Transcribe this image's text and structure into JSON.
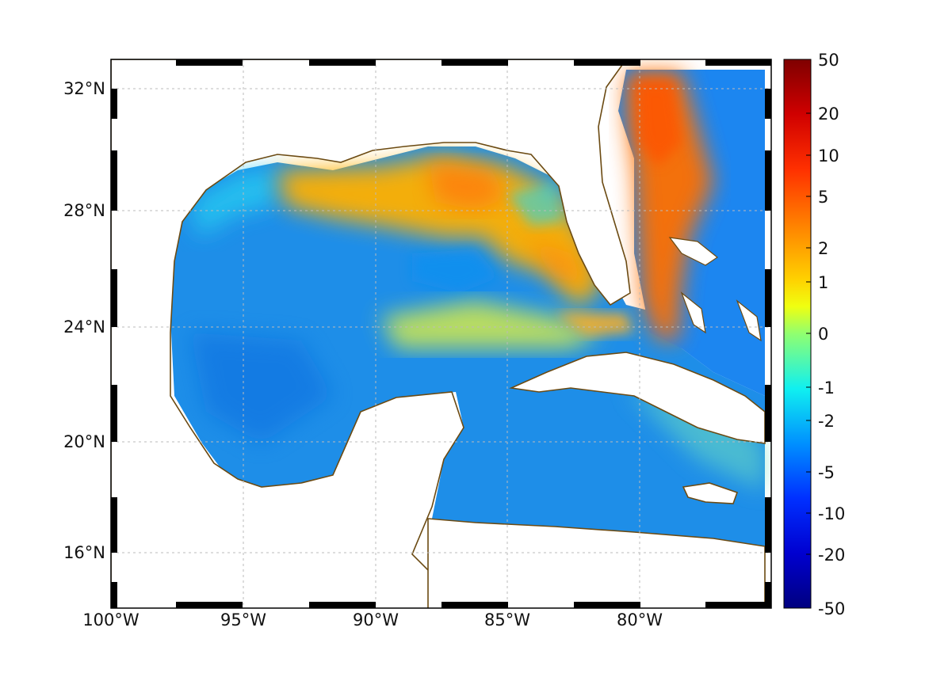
{
  "map": {
    "lat_labels": [
      "32°N",
      "28°N",
      "24°N",
      "20°N",
      "16°N"
    ],
    "lon_labels": [
      "100°W",
      "95°W",
      "90°W",
      "85°W",
      "80°W"
    ],
    "lon_range": [
      -100,
      -75
    ],
    "lat_range": [
      14.2,
      33
    ],
    "grid": true,
    "land_color": "#ffffff",
    "coast_color": "#6b4a12"
  },
  "colorbar": {
    "tick_labels": [
      "50",
      "20",
      "10",
      "5",
      "2",
      "1",
      "0",
      "-1",
      "-2",
      "-5",
      "-10",
      "-20",
      "-50"
    ],
    "colormap": "jet",
    "colors_top_to_bottom": [
      "#7f0000",
      "#ff0000",
      "#ff7f00",
      "#ffff00",
      "#7fff7f",
      "#00ffff",
      "#007fff",
      "#0000ff",
      "#00007f"
    ]
  }
}
